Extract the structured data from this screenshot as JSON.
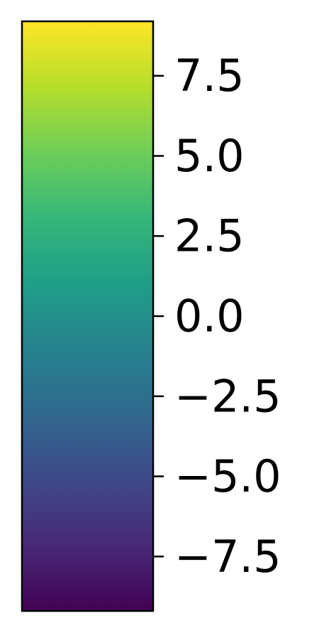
{
  "chart_data": {
    "type": "colorbar",
    "colormap": "viridis",
    "orientation": "vertical",
    "range": [
      -9.2,
      9.2
    ],
    "ticks": [
      7.5,
      5.0,
      2.5,
      0.0,
      -2.5,
      -5.0,
      -7.5
    ],
    "tick_labels": [
      "7.5",
      "5.0",
      "2.5",
      "0.0",
      "−2.5",
      "−5.0",
      "−7.5"
    ],
    "title": "",
    "label": ""
  },
  "colors": {
    "frame": "#000000",
    "background": "#ffffff",
    "stops": [
      "#440154",
      "#482878",
      "#3e4989",
      "#31688e",
      "#26828e",
      "#1f9e89",
      "#35b779",
      "#6ece58",
      "#b5de2b",
      "#fde725"
    ]
  }
}
